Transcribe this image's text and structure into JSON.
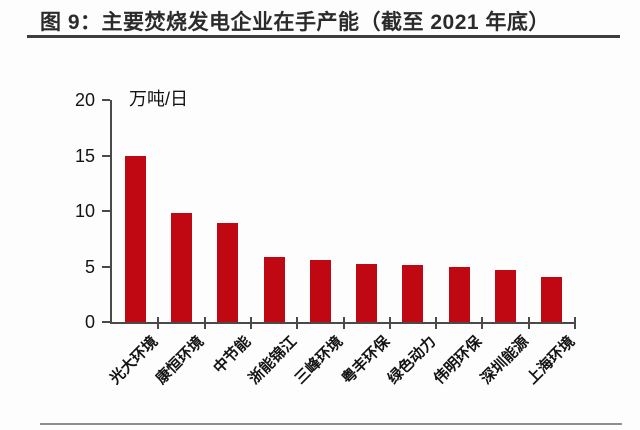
{
  "figure": {
    "title": "图 9：主要焚烧发电企业在手产能（截至 2021 年底）"
  },
  "chart_data": {
    "type": "bar",
    "title": "图 9：主要焚烧发电企业在手产能（截至 2021 年底）",
    "ylabel_unit": "万吨/日",
    "categories": [
      "光大环境",
      "康恒环境",
      "中节能",
      "浙能锦江",
      "三峰环境",
      "粤丰环保",
      "绿色动力",
      "伟明环保",
      "深圳能源",
      "上海环境"
    ],
    "values": [
      15.0,
      9.8,
      8.9,
      5.9,
      5.6,
      5.2,
      5.1,
      5.0,
      4.7,
      4.1
    ],
    "ylim": [
      0,
      20
    ],
    "yticks": [
      0,
      5,
      10,
      15,
      20
    ],
    "xlabel": "",
    "ylabel": "",
    "grid": false,
    "legend_position": "none",
    "bar_color": "#c00812",
    "axis_color": "#4a4a4a",
    "text_color": "#141414",
    "title_color": "#2b2b2b"
  }
}
